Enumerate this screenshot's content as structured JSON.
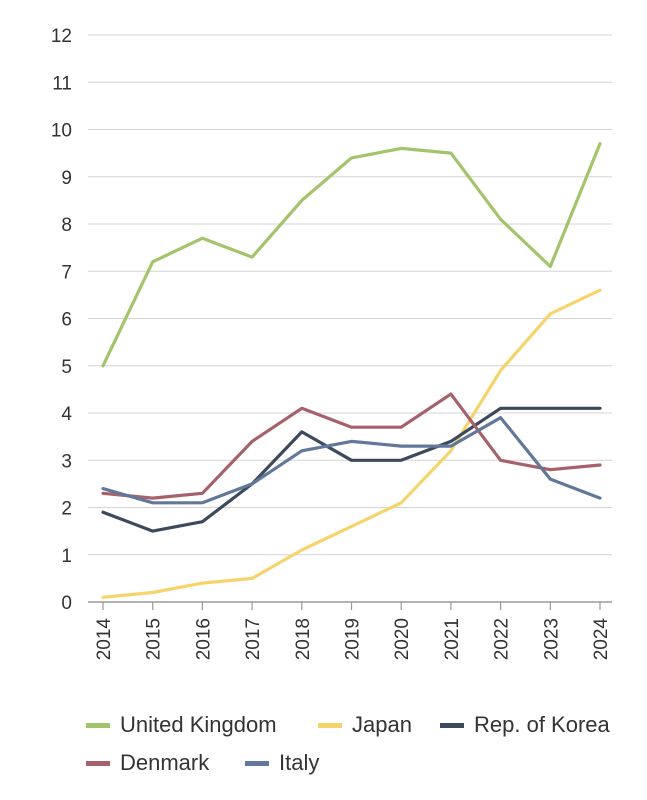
{
  "chart_data": {
    "type": "line",
    "title": "",
    "xlabel": "",
    "ylabel": "",
    "x": [
      "2014",
      "2015",
      "2016",
      "2017",
      "2018",
      "2019",
      "2020",
      "2021",
      "2022",
      "2023",
      "2024"
    ],
    "yticks": [
      "0",
      "1",
      "2",
      "3",
      "4",
      "5",
      "6",
      "7",
      "8",
      "9",
      "10",
      "11",
      "12"
    ],
    "ylim": [
      0,
      12
    ],
    "grid": true,
    "legend_position": "bottom",
    "series": [
      {
        "name": "United Kingdom",
        "color": "#a3c46b",
        "values": [
          5.0,
          7.2,
          7.7,
          7.3,
          8.5,
          9.4,
          9.6,
          9.5,
          8.1,
          7.1,
          9.7
        ]
      },
      {
        "name": "Japan",
        "color": "#f7d46b",
        "values": [
          0.1,
          0.2,
          0.4,
          0.5,
          1.1,
          1.6,
          2.1,
          3.2,
          4.9,
          6.1,
          6.6
        ]
      },
      {
        "name": "Rep. of Korea",
        "color": "#3d4a5c",
        "values": [
          1.9,
          1.5,
          1.7,
          2.5,
          3.6,
          3.0,
          3.0,
          3.4,
          4.1,
          4.1,
          4.1
        ]
      },
      {
        "name": "Denmark",
        "color": "#a6616c",
        "values": [
          2.3,
          2.2,
          2.3,
          3.4,
          4.1,
          3.7,
          3.7,
          4.4,
          3.0,
          2.8,
          2.9
        ]
      },
      {
        "name": "Italy",
        "color": "#61789a",
        "values": [
          2.4,
          2.1,
          2.1,
          2.5,
          3.2,
          3.4,
          3.3,
          3.3,
          3.9,
          2.6,
          2.2
        ]
      }
    ]
  },
  "legend": {
    "items": [
      {
        "label": "United Kingdom",
        "color": "#a3c46b"
      },
      {
        "label": "Japan",
        "color": "#f7d46b"
      },
      {
        "label": "Rep. of Korea",
        "color": "#3d4a5c"
      },
      {
        "label": "Denmark",
        "color": "#a6616c"
      },
      {
        "label": "Italy",
        "color": "#61789a"
      }
    ]
  }
}
